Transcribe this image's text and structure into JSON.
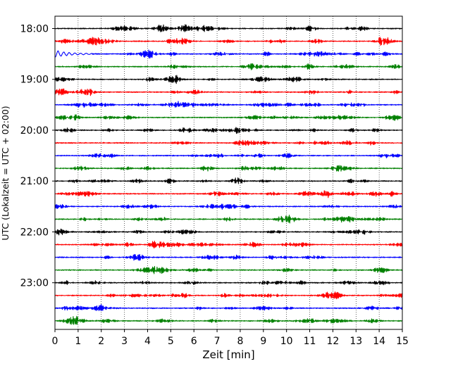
{
  "chart_data": {
    "type": "line",
    "title": "",
    "xlabel": "Zeit  [min]",
    "ylabel": "UTC (Lokalzeit = UTC + 02:00)",
    "xlim": [
      0,
      15
    ],
    "x_ticks": [
      0,
      1,
      2,
      3,
      4,
      5,
      6,
      7,
      8,
      9,
      10,
      11,
      12,
      13,
      14,
      15
    ],
    "y_tick_labels": [
      "18:00",
      "19:00",
      "20:00",
      "21:00",
      "22:00",
      "23:00"
    ],
    "trace_interval_min": 15,
    "trace_count": 24,
    "start_time": "18:00",
    "trace_colors": [
      "#000000",
      "#ff0000",
      "#0000ff",
      "#008000"
    ],
    "vertical_grid": "dotted",
    "notable_event": {
      "trace_index": 2,
      "x_range": [
        0,
        1.6
      ]
    }
  }
}
